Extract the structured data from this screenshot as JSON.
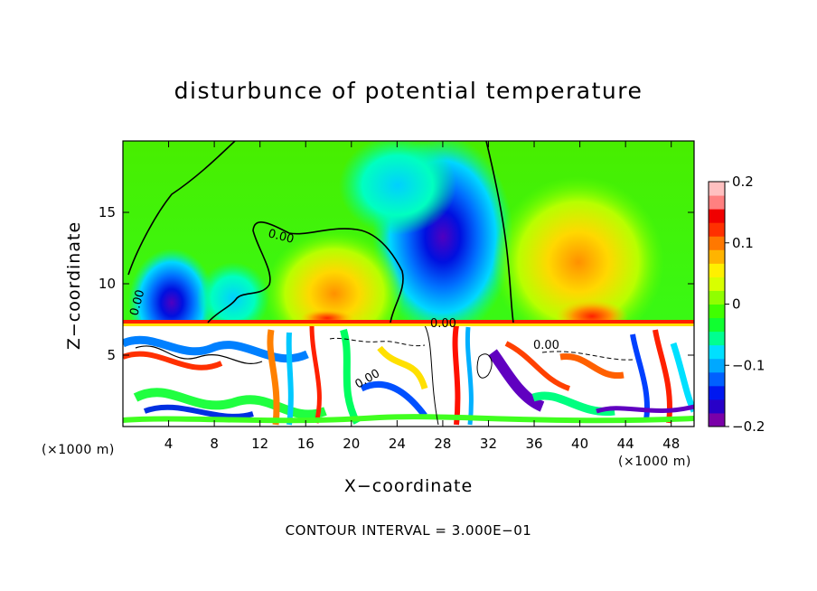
{
  "chart_data": {
    "type": "heatmap",
    "title": "disturbunce of potential temperature",
    "xlabel": "X−coordinate",
    "ylabel": "Z−coordinate",
    "x_unit_left": "(×1000 m)",
    "x_unit_right": "(×1000 m)",
    "xlim": [
      0,
      50
    ],
    "ylim": [
      0,
      20
    ],
    "xticks": [
      4,
      8,
      12,
      16,
      20,
      24,
      28,
      32,
      36,
      40,
      44,
      48
    ],
    "yticks": [
      5,
      10,
      15
    ],
    "colorbar": {
      "range": [
        -0.2,
        0.2
      ],
      "tick_values": [
        0.2,
        0.1,
        0,
        -0.1,
        -0.2
      ],
      "tick_labels": [
        "0.2",
        "0.1",
        "0",
        "−0.1",
        "−0.2"
      ],
      "colors": [
        "#7a00a8",
        "#2800c8",
        "#0018f0",
        "#0060ff",
        "#00a8ff",
        "#00e0ff",
        "#00ff90",
        "#10ff30",
        "#40ff00",
        "#90ff00",
        "#d8ff00",
        "#fff000",
        "#ffb400",
        "#ff7800",
        "#ff3000",
        "#f00000",
        "#ff8080",
        "#ffc0c0"
      ]
    },
    "contour_labels": [
      "0.00",
      "0.00",
      "0.00",
      "0.00",
      "0.00"
    ],
    "contour_interval_text": "CONTOUR INTERVAL = 3.000E−01"
  }
}
